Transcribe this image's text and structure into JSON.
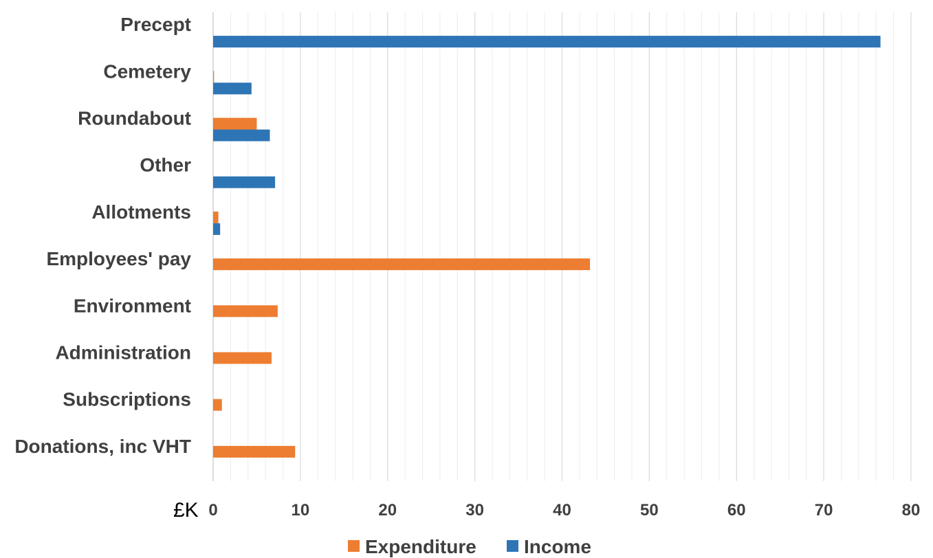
{
  "chart_data": {
    "type": "bar",
    "orientation": "horizontal",
    "categories": [
      "Precept",
      "Cemetery",
      "Roundabout",
      "Other",
      "Allotments",
      "Employees' pay",
      "Environment",
      "Administration",
      "Subscriptions",
      "Donations, inc VHT"
    ],
    "series": [
      {
        "name": "Expenditure",
        "color": "#ED7D31",
        "values": [
          0,
          0.1,
          5.0,
          0,
          0.6,
          43.2,
          7.4,
          6.7,
          1.0,
          9.4
        ]
      },
      {
        "name": "Income",
        "color": "#2E75B6",
        "values": [
          76.5,
          4.4,
          6.5,
          7.1,
          0.8,
          0,
          0,
          0,
          0,
          0
        ]
      }
    ],
    "x_unit_label": "£K",
    "xlim": [
      0,
      80
    ],
    "x_ticks": [
      "0",
      "10",
      "20",
      "30",
      "40",
      "50",
      "60",
      "70",
      "80"
    ],
    "grid": "vertical",
    "legend": "bottom"
  }
}
